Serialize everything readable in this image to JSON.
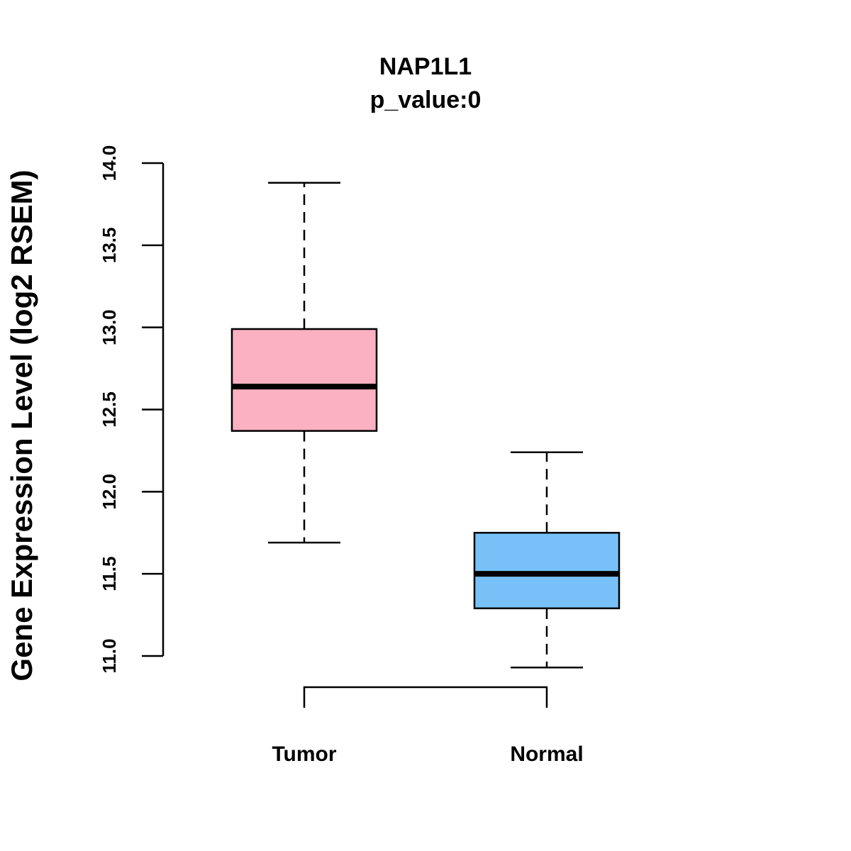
{
  "chart_data": {
    "type": "boxplot",
    "title": "NAP1L1",
    "subtitle": "p_value:0",
    "ylabel": "Gene Expression Level (log2 RSEM)",
    "xlabel": "",
    "ylim": [
      11.0,
      14.0
    ],
    "yticks": [
      "11.0",
      "11.5",
      "12.0",
      "12.5",
      "13.0",
      "13.5",
      "14.0"
    ],
    "groups": [
      {
        "name": "Tumor",
        "color": "#FBB1C2",
        "whisker_low": 11.69,
        "q1": 12.37,
        "median": 12.64,
        "q3": 12.99,
        "whisker_high": 13.88
      },
      {
        "name": "Normal",
        "color": "#77C1F8",
        "whisker_low": 10.93,
        "q1": 11.29,
        "median": 11.5,
        "q3": 11.75,
        "whisker_high": 12.24
      }
    ],
    "comparison_bracket": [
      "Tumor",
      "Normal"
    ],
    "grid": false,
    "legend": "none"
  }
}
